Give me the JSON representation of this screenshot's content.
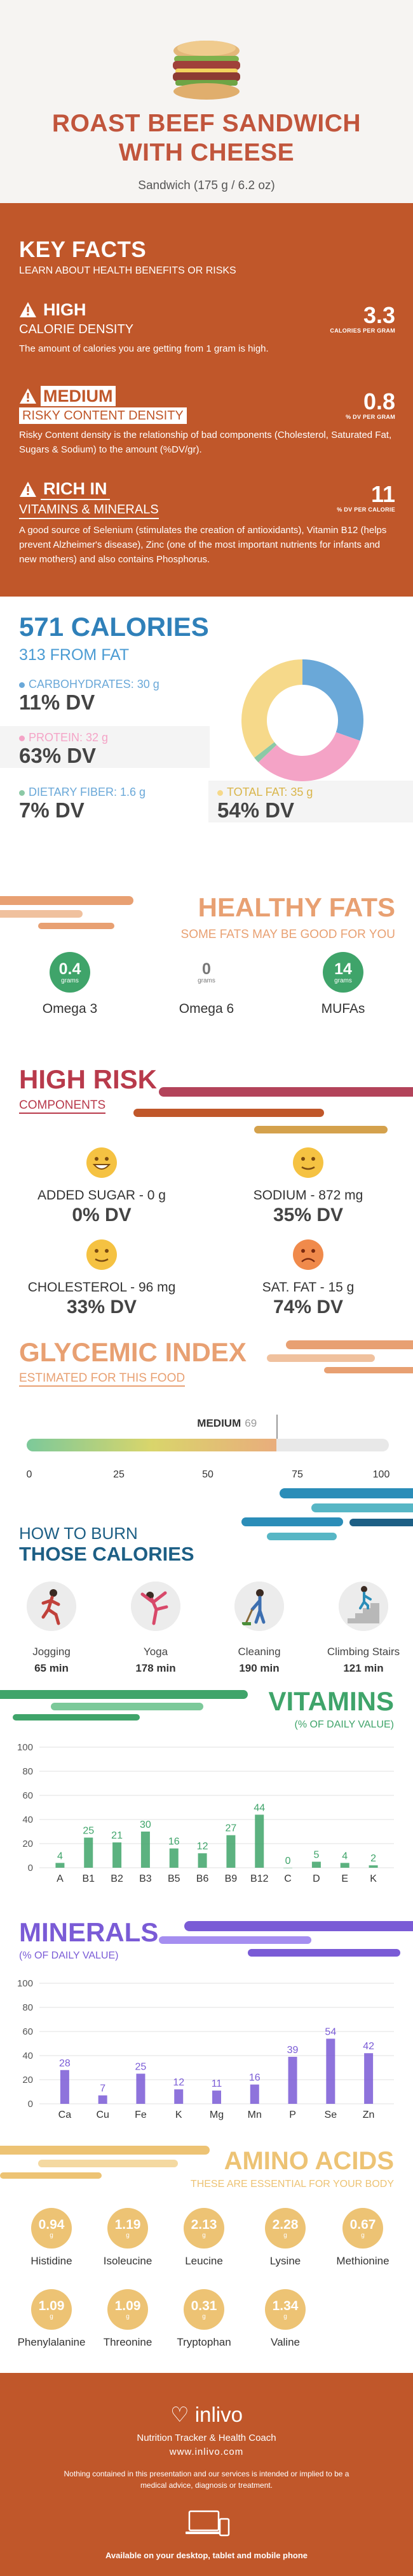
{
  "header": {
    "title_line1": "ROAST BEEF SANDWICH",
    "title_line2": "WITH CHEESE",
    "subtitle": "Sandwich (175 g / 6.2 oz)"
  },
  "key_facts": {
    "title": "KEY FACTS",
    "subtitle": "LEARN ABOUT HEALTH BENEFITS OR RISKS",
    "items": [
      {
        "level": "HIGH",
        "category": "CALORIE DENSITY",
        "value": "3.3",
        "unit": "CALORIES PER GRAM",
        "description": "The amount of calories you are getting from 1 gram is high."
      },
      {
        "level": "MEDIUM",
        "category": "RISKY CONTENT DENSITY",
        "value": "0.8",
        "unit": "% DV PER GRAM",
        "description": "Risky Content density is the relationship of bad components (Cholesterol, Saturated Fat, Sugars & Sodium) to the amount (%DV/gr)."
      },
      {
        "level": "RICH  IN",
        "category": "VITAMINS & MINERALS",
        "value": "11",
        "unit": "% DV PER CALORIE",
        "description": "A good source of Selenium (stimulates the creation of antioxidants), Vitamin B12 (helps prevent Alzheimer's disease), Zinc (one of the most important nutrients for infants and new mothers) and also contains Phosphorus."
      }
    ]
  },
  "calories": {
    "title": "571 CALORIES",
    "subtitle": "313 FROM FAT",
    "nutrients": [
      {
        "label": "CARBOHYDRATES: 30 g",
        "dv": "11% DV",
        "color": "#6aa8d8"
      },
      {
        "label": "PROTEIN: 32 g",
        "dv": "63% DV",
        "color": "#f4a3c6"
      },
      {
        "label": "DIETARY FIBER: 1.6 g",
        "dv": "7% DV",
        "color": "#8cc9a6"
      },
      {
        "label": "TOTAL FAT: 35 g",
        "dv": "54% DV",
        "color": "#f6d98a"
      }
    ],
    "chart_data": {
      "type": "pie",
      "categories": [
        "Carbohydrates",
        "Protein",
        "Dietary Fiber",
        "Total Fat"
      ],
      "values": [
        30,
        32,
        1.6,
        35
      ]
    }
  },
  "healthy_fats": {
    "title": "HEALTHY FATS",
    "subtitle": "SOME FATS MAY BE GOOD FOR YOU",
    "items": [
      {
        "name": "Omega 3",
        "value": "0.4",
        "unit": "grams",
        "color": "#3fa46a"
      },
      {
        "name": "Omega 6",
        "value": "0",
        "unit": "grams",
        "color": "#ffffff"
      },
      {
        "name": "MUFAs",
        "value": "14",
        "unit": "grams",
        "color": "#3fa46a"
      }
    ]
  },
  "high_risk": {
    "title": "HIGH RISK",
    "subtitle": "COMPONENTS",
    "items": [
      {
        "label": "ADDED SUGAR - 0 g",
        "dv": "0% DV",
        "face": "smile-face-icon"
      },
      {
        "label": "SODIUM - 872 mg",
        "dv": "35% DV",
        "face": "neutral-face-icon"
      },
      {
        "label": "CHOLESTEROL - 96 mg",
        "dv": "33% DV",
        "face": "neutral-face-icon"
      },
      {
        "label": "SAT. FAT - 15 g",
        "dv": "74% DV",
        "face": "sad-face-icon"
      }
    ]
  },
  "glycemic": {
    "title": "GLYCEMIC INDEX",
    "subtitle": "ESTIMATED FOR THIS FOOD",
    "level": "MEDIUM",
    "value": 69,
    "value_text": "69",
    "ticks": [
      "0",
      "25",
      "50",
      "75",
      "100"
    ]
  },
  "burn": {
    "title_line1": "HOW TO BURN",
    "title_line2": "THOSE CALORIES",
    "activities": [
      {
        "name": "Jogging",
        "time": "65 min"
      },
      {
        "name": "Yoga",
        "time": "178 min"
      },
      {
        "name": "Cleaning",
        "time": "190 min"
      },
      {
        "name": "Climbing Stairs",
        "time": "121 min"
      }
    ]
  },
  "vitamins": {
    "title": "VITAMINS",
    "subtitle": "(% OF DAILY VALUE)",
    "chart_data": {
      "type": "bar",
      "categories": [
        "A",
        "B1",
        "B2",
        "B3",
        "B5",
        "B6",
        "B9",
        "B12",
        "C",
        "D",
        "E",
        "K"
      ],
      "values": [
        4,
        25,
        21,
        30,
        16,
        12,
        27,
        44,
        0,
        5,
        4,
        2
      ],
      "ylim": [
        0,
        100
      ],
      "yticks": [
        "0",
        "20",
        "40",
        "60",
        "80",
        "100"
      ],
      "color": "#3fa46a"
    }
  },
  "minerals": {
    "title": "MINERALS",
    "subtitle": "(% OF DAILY VALUE)",
    "chart_data": {
      "type": "bar",
      "categories": [
        "Ca",
        "Cu",
        "Fe",
        "K",
        "Mg",
        "Mn",
        "P",
        "Se",
        "Zn"
      ],
      "values": [
        28,
        7,
        25,
        12,
        11,
        16,
        39,
        54,
        42
      ],
      "ylim": [
        0,
        100
      ],
      "yticks": [
        "0",
        "20",
        "40",
        "60",
        "80",
        "100"
      ],
      "color": "#7a5bd6"
    }
  },
  "amino_acids": {
    "title": "AMINO ACIDS",
    "subtitle": "THESE ARE ESSENTIAL FOR YOUR BODY",
    "unit": "g",
    "items": [
      {
        "name": "Histidine",
        "value": "0.94"
      },
      {
        "name": "Isoleucine",
        "value": "1.19"
      },
      {
        "name": "Leucine",
        "value": "2.13"
      },
      {
        "name": "Lysine",
        "value": "2.28"
      },
      {
        "name": "Methionine",
        "value": "0.67"
      },
      {
        "name": "Phenylalanine",
        "value": "1.09"
      },
      {
        "name": "Threonine",
        "value": "1.09"
      },
      {
        "name": "Tryptophan",
        "value": "0.31"
      },
      {
        "name": "Valine",
        "value": "1.34"
      }
    ]
  },
  "footer": {
    "brand": "inlivo",
    "tagline": "Nutrition Tracker & Health Coach",
    "url": "www.inlivo.com",
    "disclaimer": "Nothing contained in this presentation and our services is intended or implied to be a medical advice, diagnosis or treatment.",
    "available": "Available on your desktop, tablet and mobile phone"
  }
}
